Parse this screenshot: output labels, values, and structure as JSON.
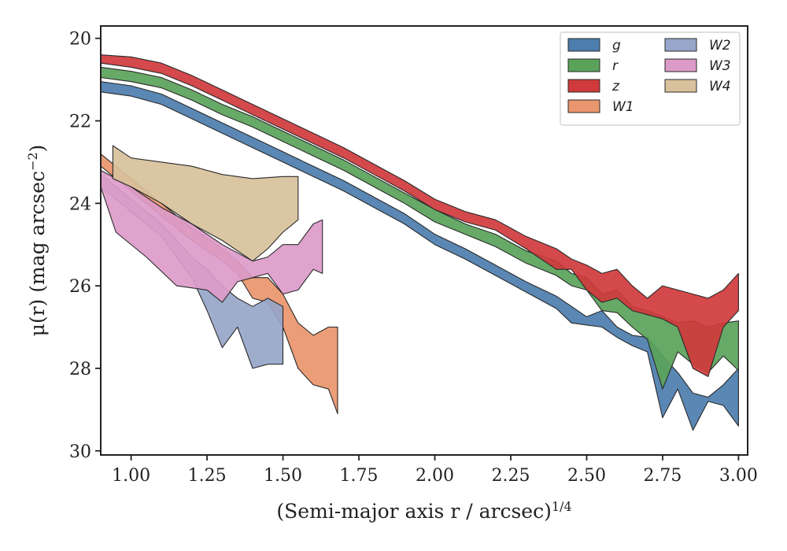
{
  "chart_data": {
    "type": "area",
    "xlabel": "(Semi-major axis r / arcsec)",
    "xlabel_exponent": "1/4",
    "ylabel": "μ(r) (mag arcsec",
    "ylabel_exponent": "−2",
    "ylabel_tail": ")",
    "xlim": [
      0.9,
      3.03
    ],
    "ylim": [
      30.1,
      19.7
    ],
    "y_inverted": true,
    "xticks": [
      1.0,
      1.25,
      1.5,
      1.75,
      2.0,
      2.25,
      2.5,
      2.75,
      3.0
    ],
    "xtick_labels": [
      "1.00",
      "1.25",
      "1.50",
      "1.75",
      "2.00",
      "2.25",
      "2.50",
      "2.75",
      "3.00"
    ],
    "yticks": [
      20,
      22,
      24,
      26,
      28,
      30
    ],
    "ytick_labels": [
      "20",
      "22",
      "24",
      "26",
      "28",
      "30"
    ],
    "grid": false,
    "legend_position": "top-right",
    "series": [
      {
        "name": "g",
        "color": "#4c7dae",
        "upper": [
          [
            0.9,
            21.05
          ],
          [
            1.0,
            21.15
          ],
          [
            1.1,
            21.35
          ],
          [
            1.2,
            21.7
          ],
          [
            1.3,
            22.05
          ],
          [
            1.4,
            22.4
          ],
          [
            1.5,
            22.75
          ],
          [
            1.6,
            23.1
          ],
          [
            1.7,
            23.45
          ],
          [
            1.8,
            23.85
          ],
          [
            1.9,
            24.25
          ],
          [
            2.0,
            24.75
          ],
          [
            2.1,
            25.1
          ],
          [
            2.2,
            25.5
          ],
          [
            2.3,
            25.9
          ],
          [
            2.4,
            26.25
          ],
          [
            2.45,
            26.5
          ],
          [
            2.5,
            26.75
          ],
          [
            2.55,
            26.6
          ],
          [
            2.6,
            27.0
          ],
          [
            2.65,
            27.2
          ],
          [
            2.7,
            27.25
          ],
          [
            2.75,
            27.7
          ],
          [
            2.8,
            28.1
          ],
          [
            2.85,
            28.6
          ],
          [
            2.9,
            28.7
          ],
          [
            2.95,
            28.4
          ],
          [
            3.0,
            28.0
          ]
        ],
        "lower": [
          [
            0.9,
            21.3
          ],
          [
            1.0,
            21.4
          ],
          [
            1.1,
            21.6
          ],
          [
            1.2,
            21.95
          ],
          [
            1.3,
            22.3
          ],
          [
            1.4,
            22.65
          ],
          [
            1.5,
            23.0
          ],
          [
            1.6,
            23.35
          ],
          [
            1.7,
            23.7
          ],
          [
            1.8,
            24.1
          ],
          [
            1.9,
            24.5
          ],
          [
            2.0,
            25.0
          ],
          [
            2.1,
            25.35
          ],
          [
            2.2,
            25.75
          ],
          [
            2.3,
            26.15
          ],
          [
            2.4,
            26.55
          ],
          [
            2.45,
            26.9
          ],
          [
            2.5,
            26.95
          ],
          [
            2.55,
            27.0
          ],
          [
            2.6,
            27.25
          ],
          [
            2.65,
            27.45
          ],
          [
            2.7,
            27.6
          ],
          [
            2.75,
            29.2
          ],
          [
            2.8,
            28.5
          ],
          [
            2.85,
            29.5
          ],
          [
            2.9,
            28.8
          ],
          [
            2.95,
            28.9
          ],
          [
            3.0,
            29.4
          ]
        ]
      },
      {
        "name": "r",
        "color": "#5aa25a",
        "upper": [
          [
            0.9,
            20.7
          ],
          [
            1.0,
            20.8
          ],
          [
            1.1,
            20.95
          ],
          [
            1.2,
            21.25
          ],
          [
            1.3,
            21.6
          ],
          [
            1.4,
            21.9
          ],
          [
            1.5,
            22.25
          ],
          [
            1.6,
            22.6
          ],
          [
            1.7,
            22.95
          ],
          [
            1.8,
            23.35
          ],
          [
            1.9,
            23.75
          ],
          [
            2.0,
            24.15
          ],
          [
            2.1,
            24.5
          ],
          [
            2.2,
            24.75
          ],
          [
            2.3,
            25.15
          ],
          [
            2.4,
            25.4
          ],
          [
            2.45,
            25.7
          ],
          [
            2.5,
            25.8
          ],
          [
            2.55,
            26.2
          ],
          [
            2.6,
            26.1
          ],
          [
            2.65,
            26.5
          ],
          [
            2.7,
            26.6
          ],
          [
            2.75,
            26.75
          ],
          [
            2.8,
            26.9
          ],
          [
            2.85,
            26.85
          ],
          [
            2.9,
            27.0
          ],
          [
            2.95,
            26.9
          ],
          [
            3.0,
            26.85
          ]
        ],
        "lower": [
          [
            0.9,
            20.95
          ],
          [
            1.0,
            21.05
          ],
          [
            1.1,
            21.2
          ],
          [
            1.2,
            21.5
          ],
          [
            1.3,
            21.85
          ],
          [
            1.4,
            22.15
          ],
          [
            1.5,
            22.5
          ],
          [
            1.6,
            22.85
          ],
          [
            1.7,
            23.2
          ],
          [
            1.8,
            23.6
          ],
          [
            1.9,
            24.0
          ],
          [
            2.0,
            24.45
          ],
          [
            2.1,
            24.75
          ],
          [
            2.2,
            25.05
          ],
          [
            2.3,
            25.45
          ],
          [
            2.4,
            25.75
          ],
          [
            2.45,
            26.0
          ],
          [
            2.5,
            26.1
          ],
          [
            2.55,
            26.6
          ],
          [
            2.6,
            26.65
          ],
          [
            2.65,
            27.0
          ],
          [
            2.7,
            27.3
          ],
          [
            2.75,
            28.5
          ],
          [
            2.8,
            27.6
          ],
          [
            2.85,
            27.9
          ],
          [
            2.9,
            28.1
          ],
          [
            2.95,
            27.7
          ],
          [
            3.0,
            28.05
          ]
        ]
      },
      {
        "name": "z",
        "color": "#d03a3c",
        "upper": [
          [
            0.9,
            20.4
          ],
          [
            1.0,
            20.45
          ],
          [
            1.1,
            20.6
          ],
          [
            1.2,
            20.9
          ],
          [
            1.3,
            21.25
          ],
          [
            1.4,
            21.6
          ],
          [
            1.5,
            21.95
          ],
          [
            1.6,
            22.3
          ],
          [
            1.7,
            22.65
          ],
          [
            1.8,
            23.05
          ],
          [
            1.9,
            23.45
          ],
          [
            2.0,
            23.9
          ],
          [
            2.1,
            24.2
          ],
          [
            2.2,
            24.4
          ],
          [
            2.3,
            24.8
          ],
          [
            2.4,
            25.1
          ],
          [
            2.45,
            25.35
          ],
          [
            2.5,
            25.5
          ],
          [
            2.55,
            25.7
          ],
          [
            2.6,
            25.6
          ],
          [
            2.65,
            26.0
          ],
          [
            2.7,
            26.3
          ],
          [
            2.75,
            26.0
          ],
          [
            2.8,
            26.1
          ],
          [
            2.85,
            26.2
          ],
          [
            2.9,
            26.3
          ],
          [
            2.95,
            26.1
          ],
          [
            3.0,
            25.7
          ]
        ],
        "lower": [
          [
            0.9,
            20.6
          ],
          [
            1.0,
            20.7
          ],
          [
            1.1,
            20.85
          ],
          [
            1.2,
            21.15
          ],
          [
            1.3,
            21.5
          ],
          [
            1.4,
            21.85
          ],
          [
            1.5,
            22.2
          ],
          [
            1.6,
            22.55
          ],
          [
            1.7,
            22.9
          ],
          [
            1.8,
            23.3
          ],
          [
            1.9,
            23.7
          ],
          [
            2.0,
            24.15
          ],
          [
            2.1,
            24.45
          ],
          [
            2.2,
            24.65
          ],
          [
            2.3,
            25.1
          ],
          [
            2.4,
            25.6
          ],
          [
            2.45,
            25.6
          ],
          [
            2.5,
            26.1
          ],
          [
            2.55,
            26.4
          ],
          [
            2.6,
            26.3
          ],
          [
            2.65,
            26.6
          ],
          [
            2.7,
            26.7
          ],
          [
            2.75,
            26.8
          ],
          [
            2.8,
            27.0
          ],
          [
            2.85,
            28.0
          ],
          [
            2.9,
            28.2
          ],
          [
            2.95,
            27.0
          ],
          [
            3.0,
            26.6
          ]
        ]
      },
      {
        "name": "W1",
        "color": "#e9956d",
        "upper": [
          [
            0.9,
            22.8
          ],
          [
            1.0,
            23.4
          ],
          [
            1.1,
            24.0
          ],
          [
            1.2,
            24.6
          ],
          [
            1.3,
            25.1
          ],
          [
            1.35,
            25.4
          ],
          [
            1.4,
            25.8
          ],
          [
            1.45,
            25.8
          ],
          [
            1.5,
            26.2
          ],
          [
            1.55,
            26.9
          ],
          [
            1.6,
            27.2
          ],
          [
            1.65,
            27.0
          ],
          [
            1.68,
            27.0
          ]
        ],
        "lower": [
          [
            0.9,
            23.1
          ],
          [
            1.0,
            23.7
          ],
          [
            1.1,
            24.3
          ],
          [
            1.2,
            24.9
          ],
          [
            1.3,
            25.4
          ],
          [
            1.35,
            25.7
          ],
          [
            1.4,
            26.3
          ],
          [
            1.45,
            26.4
          ],
          [
            1.5,
            27.0
          ],
          [
            1.55,
            28.0
          ],
          [
            1.6,
            28.4
          ],
          [
            1.65,
            28.5
          ],
          [
            1.68,
            29.1
          ]
        ]
      },
      {
        "name": "W2",
        "color": "#97a6c9",
        "upper": [
          [
            0.9,
            23.3
          ],
          [
            1.0,
            23.9
          ],
          [
            1.1,
            24.5
          ],
          [
            1.2,
            25.3
          ],
          [
            1.25,
            25.6
          ],
          [
            1.3,
            26.0
          ],
          [
            1.35,
            26.3
          ],
          [
            1.4,
            26.5
          ],
          [
            1.45,
            26.3
          ],
          [
            1.5,
            26.5
          ]
        ],
        "lower": [
          [
            0.9,
            23.6
          ],
          [
            1.0,
            24.2
          ],
          [
            1.1,
            24.8
          ],
          [
            1.2,
            25.8
          ],
          [
            1.25,
            26.6
          ],
          [
            1.3,
            27.5
          ],
          [
            1.35,
            27.0
          ],
          [
            1.4,
            28.0
          ],
          [
            1.45,
            27.9
          ],
          [
            1.5,
            27.9
          ]
        ]
      },
      {
        "name": "W3",
        "color": "#dc9bc9",
        "upper": [
          [
            0.9,
            23.2
          ],
          [
            1.0,
            23.6
          ],
          [
            1.1,
            24.1
          ],
          [
            1.2,
            24.5
          ],
          [
            1.3,
            25.0
          ],
          [
            1.35,
            25.2
          ],
          [
            1.4,
            25.4
          ],
          [
            1.45,
            25.3
          ],
          [
            1.5,
            25.0
          ],
          [
            1.55,
            25.0
          ],
          [
            1.6,
            24.5
          ],
          [
            1.63,
            24.4
          ]
        ],
        "lower": [
          [
            0.9,
            23.6
          ],
          [
            0.95,
            24.7
          ],
          [
            1.05,
            25.3
          ],
          [
            1.15,
            26.0
          ],
          [
            1.25,
            26.1
          ],
          [
            1.3,
            26.4
          ],
          [
            1.35,
            25.9
          ],
          [
            1.4,
            25.8
          ],
          [
            1.45,
            25.7
          ],
          [
            1.5,
            26.2
          ],
          [
            1.55,
            26.1
          ],
          [
            1.6,
            25.6
          ],
          [
            1.63,
            25.7
          ]
        ]
      },
      {
        "name": "W4",
        "color": "#d8c19c",
        "upper": [
          [
            0.94,
            22.6
          ],
          [
            1.0,
            22.9
          ],
          [
            1.1,
            23.0
          ],
          [
            1.2,
            23.1
          ],
          [
            1.3,
            23.3
          ],
          [
            1.4,
            23.4
          ],
          [
            1.5,
            23.35
          ],
          [
            1.55,
            23.35
          ]
        ],
        "lower": [
          [
            0.94,
            23.4
          ],
          [
            1.0,
            23.6
          ],
          [
            1.1,
            24.0
          ],
          [
            1.2,
            24.5
          ],
          [
            1.3,
            24.9
          ],
          [
            1.4,
            25.4
          ],
          [
            1.45,
            25.1
          ],
          [
            1.5,
            24.7
          ],
          [
            1.55,
            24.4
          ]
        ]
      }
    ]
  }
}
